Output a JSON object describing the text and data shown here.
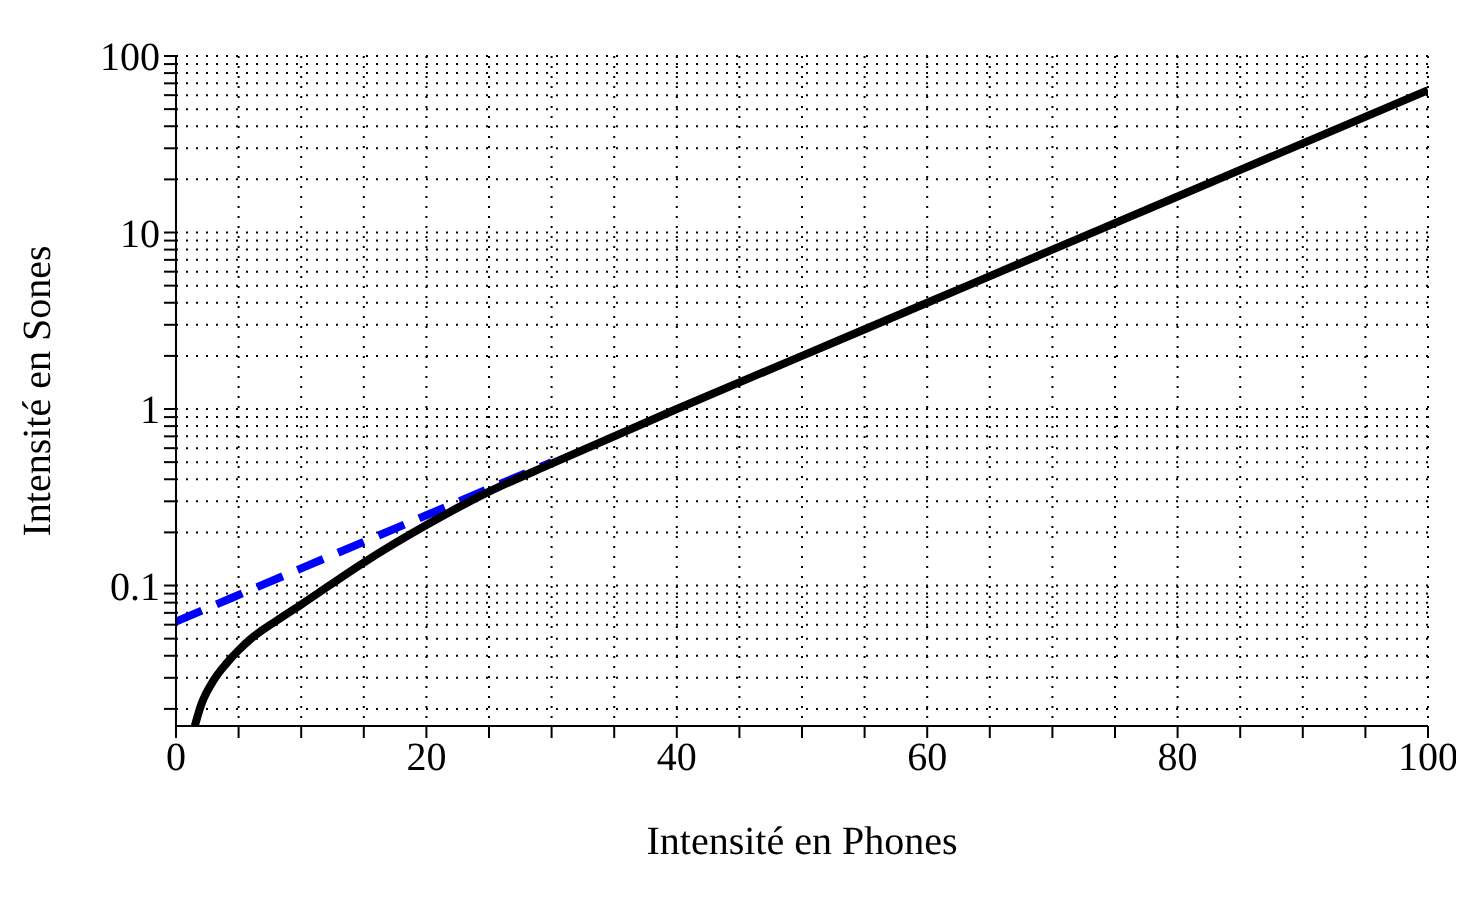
{
  "chart_data": {
    "type": "line",
    "xlabel": "Intensité en Phones",
    "ylabel": "Intensité en Sones",
    "log": "y",
    "grid": true,
    "legend": false,
    "marker": "none",
    "xlim": [
      0,
      100
    ],
    "xticks": [
      0,
      {
        "value": 5,
        "label": null
      },
      {
        "value": 10,
        "label": null
      },
      {
        "value": 15,
        "label": null
      },
      20,
      {
        "value": 25,
        "label": null
      },
      {
        "value": 30,
        "label": null
      },
      {
        "value": 35,
        "label": null
      },
      40,
      {
        "value": 45,
        "label": null
      },
      {
        "value": 50,
        "label": null
      },
      {
        "value": 55,
        "label": null
      },
      60,
      {
        "value": 65,
        "label": null
      },
      {
        "value": 70,
        "label": null
      },
      {
        "value": 75,
        "label": null
      },
      80,
      {
        "value": 85,
        "label": null
      },
      {
        "value": 90,
        "label": null
      },
      {
        "value": 95,
        "label": null
      },
      100
    ],
    "ylim": [
      0.016,
      100
    ],
    "yticks": [
      {
        "value": 0.02,
        "label": null
      },
      {
        "value": 0.03,
        "label": null
      },
      {
        "value": 0.04,
        "label": null
      },
      {
        "value": 0.05,
        "label": null
      },
      {
        "value": 0.06,
        "label": null
      },
      {
        "value": 0.07,
        "label": null
      },
      {
        "value": 0.08,
        "label": null
      },
      {
        "value": 0.09,
        "label": null
      },
      0.1,
      {
        "value": 0.2,
        "label": null
      },
      {
        "value": 0.3,
        "label": null
      },
      {
        "value": 0.4,
        "label": null
      },
      {
        "value": 0.5,
        "label": null
      },
      {
        "value": 0.6,
        "label": null
      },
      {
        "value": 0.7,
        "label": null
      },
      {
        "value": 0.8,
        "label": null
      },
      {
        "value": 0.9,
        "label": null
      },
      1,
      {
        "value": 2,
        "label": null
      },
      {
        "value": 3,
        "label": null
      },
      {
        "value": 4,
        "label": null
      },
      {
        "value": 5,
        "label": null
      },
      {
        "value": 6,
        "label": null
      },
      {
        "value": 7,
        "label": null
      },
      {
        "value": 8,
        "label": null
      },
      {
        "value": 9,
        "label": null
      },
      10,
      {
        "value": 20,
        "label": null
      },
      {
        "value": 30,
        "label": null
      },
      {
        "value": 40,
        "label": null
      },
      {
        "value": 50,
        "label": null
      },
      {
        "value": 60,
        "label": null
      },
      {
        "value": 70,
        "label": null
      },
      {
        "value": 80,
        "label": null
      },
      {
        "value": 90,
        "label": null
      },
      100
    ],
    "series": [
      {
        "color": "#0000ff",
        "line_style": "dashed",
        "x": [
          0,
          10,
          20,
          30
        ],
        "values": [
          0.0625,
          0.125,
          0.25,
          0.5
        ]
      },
      {
        "color": "#000000",
        "line_style": "solid",
        "x": [
          1.5,
          2,
          3,
          4,
          5,
          6,
          8,
          10,
          15,
          20,
          25,
          30,
          40,
          50,
          60,
          70,
          80,
          90,
          100
        ],
        "values": [
          0.016,
          0.021,
          0.029,
          0.036,
          0.043,
          0.05,
          0.063,
          0.078,
          0.135,
          0.22,
          0.34,
          0.49,
          1,
          2,
          4,
          8,
          16,
          32,
          64
        ]
      }
    ]
  }
}
